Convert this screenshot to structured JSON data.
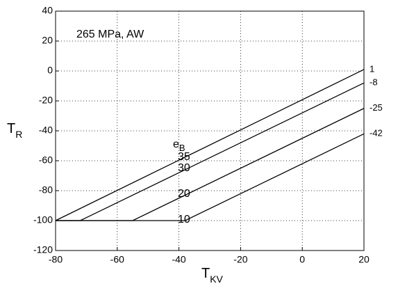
{
  "chart_data": {
    "type": "line",
    "annotation": "265 MPa, AW",
    "xlabel": {
      "main": "T",
      "sub": "KV"
    },
    "ylabel": {
      "main": "T",
      "sub": "R"
    },
    "curve_label": {
      "main": "e",
      "sub": "B",
      "levels": [
        "35",
        "30",
        "20",
        "10"
      ]
    },
    "xlim": [
      -80,
      20
    ],
    "xticks": [
      -80,
      -60,
      -40,
      -20,
      0,
      20
    ],
    "ylim": [
      -120,
      40
    ],
    "yticks": [
      -120,
      -100,
      -80,
      -60,
      -40,
      -20,
      0,
      20,
      40
    ],
    "grid": true,
    "series": [
      {
        "name": "1",
        "color": "#000000",
        "x": [
          -80,
          20
        ],
        "values": [
          -100,
          1
        ]
      },
      {
        "name": "-8",
        "color": "#000000",
        "x": [
          -80,
          -72,
          20
        ],
        "values": [
          -100,
          -100,
          -8
        ]
      },
      {
        "name": "-25",
        "color": "#000000",
        "x": [
          -80,
          -55,
          20
        ],
        "values": [
          -100,
          -100,
          -25
        ]
      },
      {
        "name": "-42",
        "color": "#000000",
        "x": [
          -80,
          -38,
          20
        ],
        "values": [
          -100,
          -100,
          -42
        ]
      }
    ]
  }
}
